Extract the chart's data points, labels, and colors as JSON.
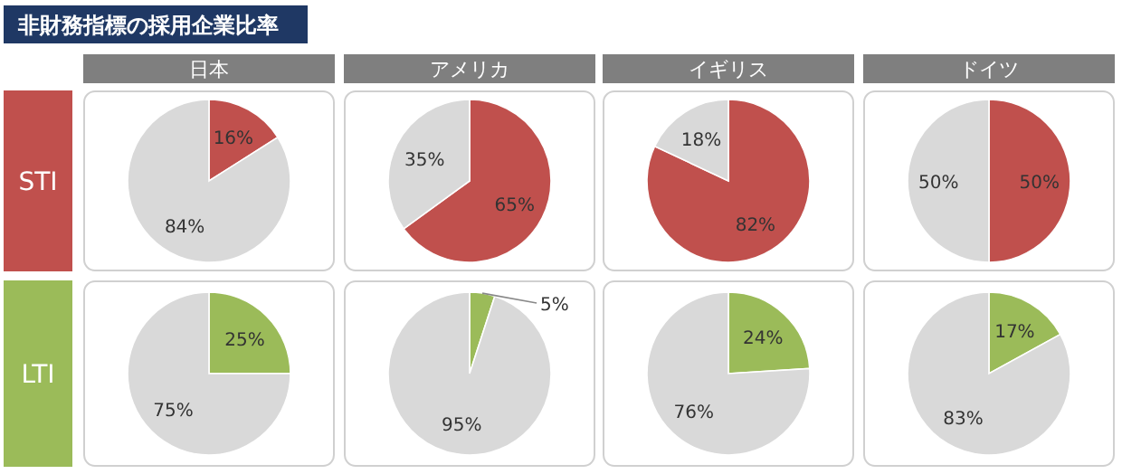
{
  "chart_data": [
    {
      "type": "other",
      "title": "非財務指標の採用企業比率"
    },
    {
      "type": "pie",
      "title": "日本",
      "ylabel": "STI",
      "categories": [
        null,
        null
      ],
      "values": [
        16,
        84
      ],
      "colors": [
        "#c0504d",
        "#d9d9d9"
      ],
      "value_labels": [
        "16%",
        "84%"
      ]
    },
    {
      "type": "pie",
      "title": "アメリカ",
      "categories": [
        null,
        null
      ],
      "values": [
        65,
        35
      ],
      "colors": [
        "#c0504d",
        "#d9d9d9"
      ],
      "value_labels": [
        "65%",
        "35%"
      ]
    },
    {
      "type": "pie",
      "title": "イギリス",
      "categories": [
        null,
        null
      ],
      "values": [
        82,
        18
      ],
      "colors": [
        "#c0504d",
        "#d9d9d9"
      ],
      "value_labels": [
        "82%",
        "18%"
      ]
    },
    {
      "type": "pie",
      "title": "ドイツ",
      "categories": [
        null,
        null
      ],
      "values": [
        50,
        50
      ],
      "colors": [
        "#c0504d",
        "#d9d9d9"
      ],
      "value_labels": [
        "50%",
        "50%"
      ]
    },
    {
      "type": "pie",
      "ylabel": "LTI",
      "categories": [
        null,
        null
      ],
      "values": [
        25,
        75
      ],
      "colors": [
        "#9bbb59",
        "#d9d9d9"
      ],
      "value_labels": [
        "25%",
        "75%"
      ]
    },
    {
      "type": "pie",
      "categories": [
        null,
        null
      ],
      "values": [
        5,
        95
      ],
      "colors": [
        "#9bbb59",
        "#d9d9d9"
      ],
      "value_labels": [
        "5%",
        "95%"
      ]
    },
    {
      "type": "pie",
      "categories": [
        null,
        null
      ],
      "values": [
        24,
        76
      ],
      "colors": [
        "#9bbb59",
        "#d9d9d9"
      ],
      "value_labels": [
        "24%",
        "76%"
      ]
    },
    {
      "type": "pie",
      "categories": [
        null,
        null
      ],
      "values": [
        17,
        83
      ],
      "colors": [
        "#9bbb59",
        "#d9d9d9"
      ],
      "value_labels": [
        "17%",
        "83%"
      ]
    }
  ]
}
